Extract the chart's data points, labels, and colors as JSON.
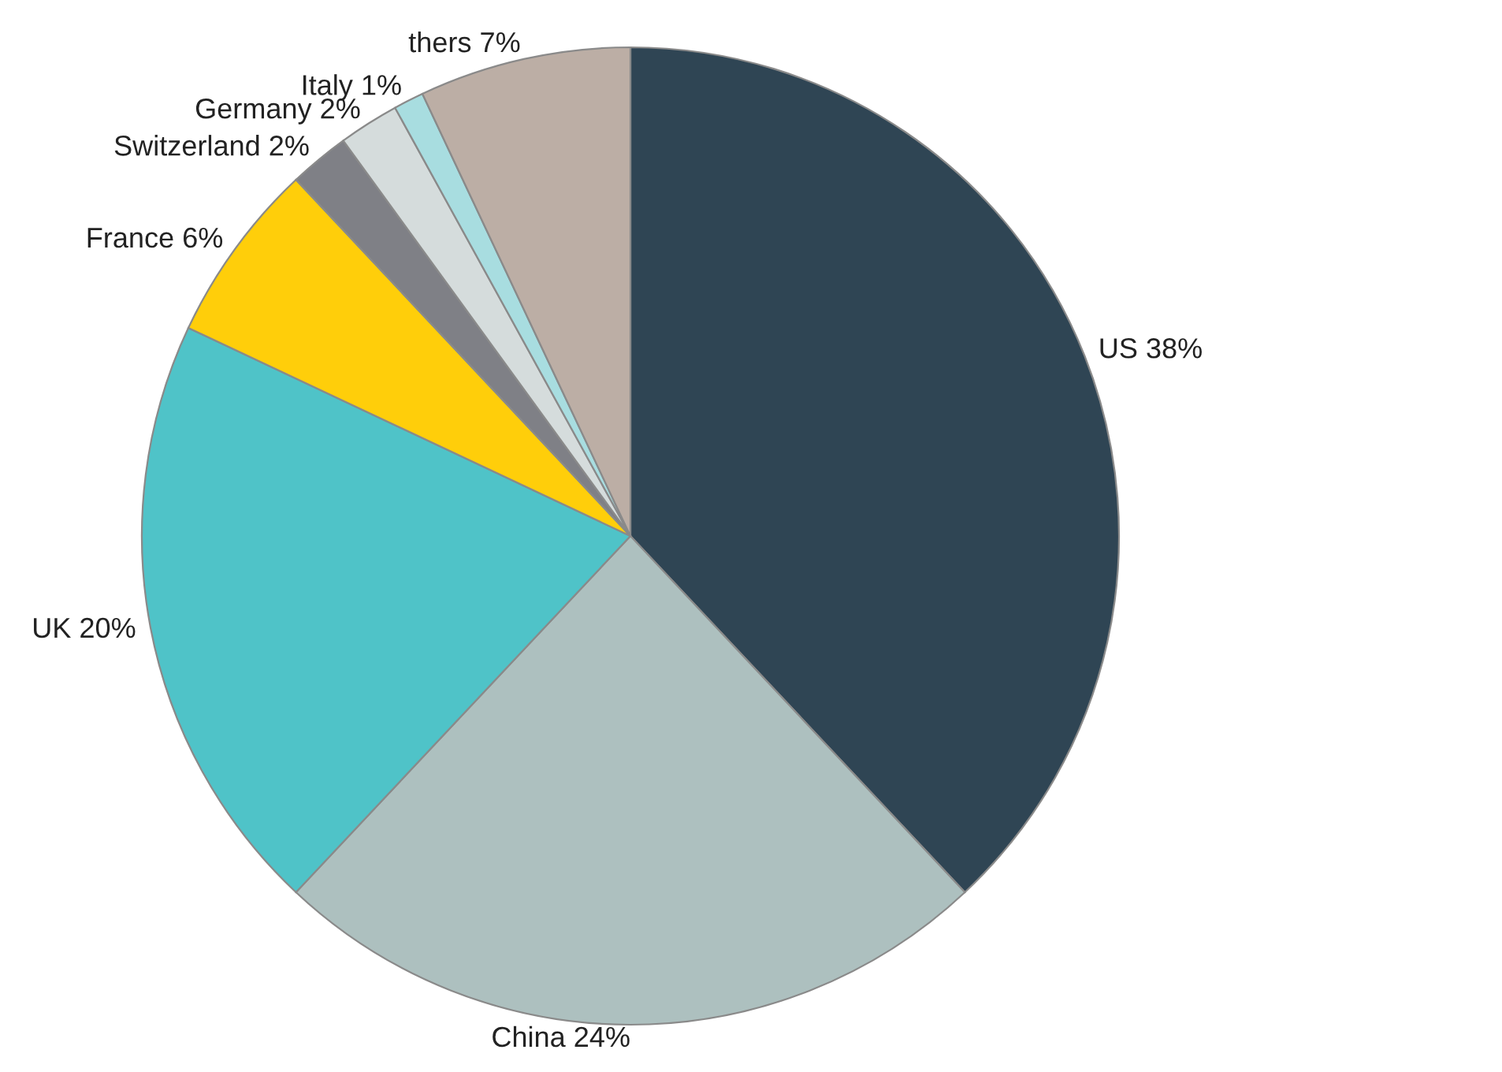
{
  "chart_data": {
    "type": "pie",
    "categories": [
      "US 38%",
      "China 24%",
      "UK 20%",
      "France 6%",
      "Switzerland 2%",
      "Germany 2%",
      "Italy 1%",
      "thers 7%"
    ],
    "values": [
      38,
      24,
      20,
      6,
      2,
      2,
      1,
      7
    ],
    "colors": [
      "#2f4554",
      "#adc0bf",
      "#4fc3c8",
      "#ffce0a",
      "#7f8086",
      "#d5dcdc",
      "#a8dde0",
      "#bcaea5"
    ]
  }
}
